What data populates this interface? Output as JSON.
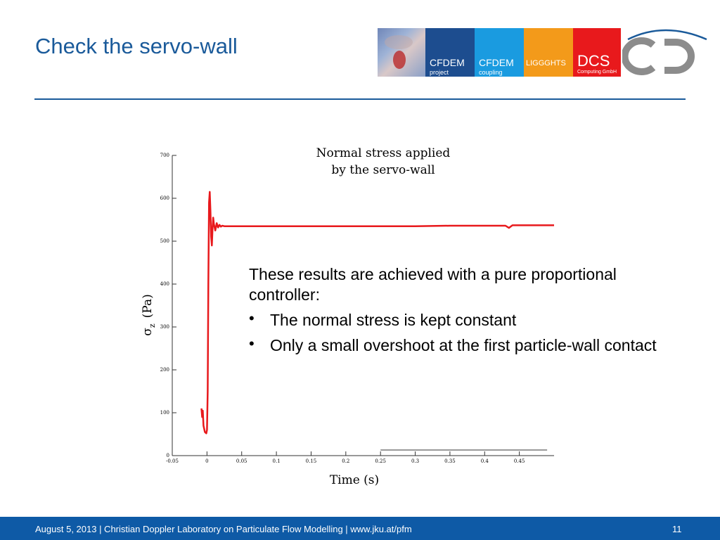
{
  "slide": {
    "title": "Check the servo-wall",
    "page_number": "11"
  },
  "logos": {
    "cfdem_project": {
      "name": "CFDEM",
      "sub": "project"
    },
    "cfdem_coupling": {
      "name": "CFDEM",
      "sub": "coupling"
    },
    "liggghts": "LIGGGHTS",
    "dcs": {
      "name": "DCS",
      "sub": "Computing GmbH"
    }
  },
  "callout": {
    "intro": "These results are achieved with a pure proportional controller:",
    "bullets": [
      "The normal stress is kept constant",
      "Only a small overshoot at the first particle-wall contact"
    ]
  },
  "footer": {
    "text": "August 5, 2013 | Christian Doppler Laboratory on Particulate Flow Modelling | www.jku.at/pfm"
  },
  "colors": {
    "title_blue": "#1a5a9a",
    "footer_blue": "#0e5aa6",
    "series_red": "#e8191c"
  },
  "chart_data": {
    "type": "line",
    "title": "Normal stress applied\nby the servo-wall",
    "title_lines": [
      "Normal stress applied",
      "by the servo-wall"
    ],
    "xlabel": "Time (s)",
    "ylabel": "σ",
    "ylabel_sub": "z",
    "ylabel_unit": "(Pa)",
    "xlim": [
      -0.05,
      0.5
    ],
    "ylim": [
      0,
      700
    ],
    "xticks": [
      -0.05,
      0,
      0.05,
      0.1,
      0.15,
      0.2,
      0.25,
      0.3,
      0.35,
      0.4,
      0.45
    ],
    "xtick_labels": [
      "-0.05",
      "0",
      "0.05",
      "0.1",
      "0.15",
      "0.2",
      "0.25",
      "0.3",
      "0.35",
      "0.4",
      "0.45"
    ],
    "yticks": [
      0,
      100,
      200,
      300,
      400,
      500,
      600,
      700
    ],
    "ytick_labels": [
      "0",
      "100",
      "200",
      "300",
      "400",
      "500",
      "600",
      "700"
    ],
    "grid": false,
    "series": [
      {
        "color": "#e8191c",
        "x": [
          -0.008,
          -0.007,
          -0.006,
          -0.005,
          -0.003,
          -0.001,
          0.0,
          0.001,
          0.002,
          0.003,
          0.004,
          0.005,
          0.006,
          0.007,
          0.008,
          0.009,
          0.01,
          0.012,
          0.014,
          0.016,
          0.018,
          0.02,
          0.022,
          0.025,
          0.03,
          0.05,
          0.1,
          0.15,
          0.2,
          0.25,
          0.3,
          0.35,
          0.4,
          0.43,
          0.435,
          0.44,
          0.45,
          0.5
        ],
        "y": [
          110,
          90,
          105,
          70,
          55,
          52,
          60,
          150,
          400,
          590,
          615,
          570,
          510,
          490,
          530,
          555,
          540,
          525,
          542,
          532,
          538,
          534,
          536,
          535,
          535,
          535,
          535,
          535,
          535,
          535,
          535,
          536,
          536,
          536,
          531,
          537,
          537,
          537
        ]
      }
    ]
  }
}
